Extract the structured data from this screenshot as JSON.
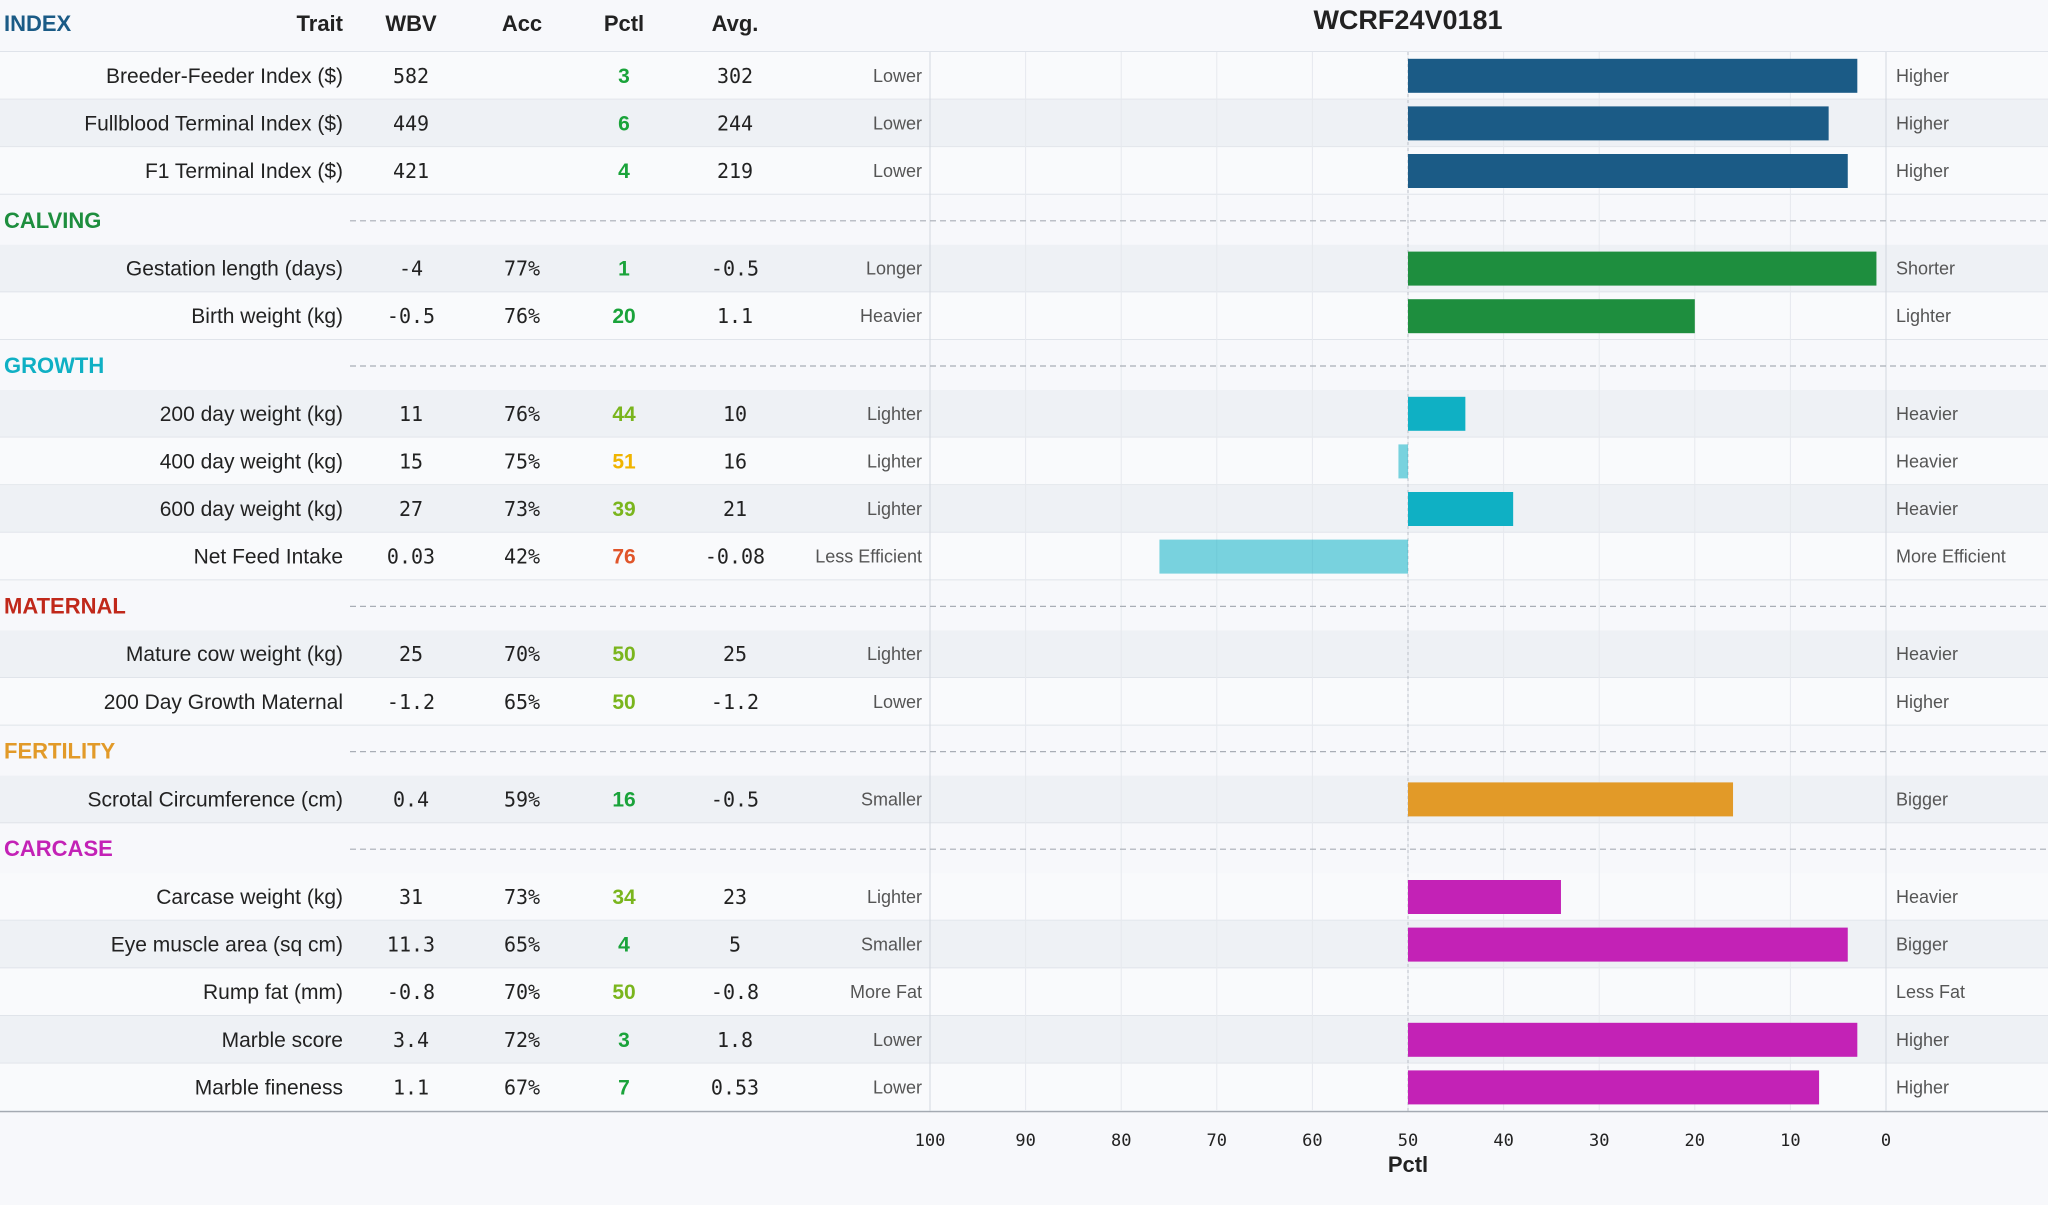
{
  "title": "WCRF24V0181",
  "columns": {
    "trait": "Trait",
    "wbv": "WBV",
    "acc": "Acc",
    "pctl": "Pctl",
    "avg": "Avg."
  },
  "axis": {
    "label": "Pctl",
    "ticks": [
      100,
      90,
      80,
      70,
      60,
      50,
      40,
      30,
      20,
      10,
      0
    ],
    "range": [
      100,
      0
    ]
  },
  "pctl_colors": {
    "excellent": "#1aa33a",
    "good": "#7ab51d",
    "average": "#f0b400",
    "poor": "#e0552a"
  },
  "chart_data": {
    "type": "bar",
    "orientation": "horizontal",
    "baseline": 50,
    "xlim": [
      100,
      0
    ],
    "xlabel": "Pctl",
    "title": "WCRF24V0181",
    "groups": [
      {
        "name": "INDEX",
        "color": "#1b5b86",
        "traits": [
          {
            "trait": "Breeder-Feeder Index ($)",
            "wbv": "582",
            "acc": "",
            "pctl": 3,
            "avg": "302",
            "low": "Lower",
            "high": "Higher"
          },
          {
            "trait": "Fullblood Terminal Index ($)",
            "wbv": "449",
            "acc": "",
            "pctl": 6,
            "avg": "244",
            "low": "Lower",
            "high": "Higher"
          },
          {
            "trait": "F1 Terminal Index ($)",
            "wbv": "421",
            "acc": "",
            "pctl": 4,
            "avg": "219",
            "low": "Lower",
            "high": "Higher"
          }
        ]
      },
      {
        "name": "CALVING",
        "color": "#1e8e3e",
        "traits": [
          {
            "trait": "Gestation length (days)",
            "wbv": "-4",
            "acc": "77%",
            "pctl": 1,
            "avg": "-0.5",
            "low": "Longer",
            "high": "Shorter"
          },
          {
            "trait": "Birth weight (kg)",
            "wbv": "-0.5",
            "acc": "76%",
            "pctl": 20,
            "avg": "1.1",
            "low": "Heavier",
            "high": "Lighter"
          }
        ]
      },
      {
        "name": "GROWTH",
        "color": "#0fb0c4",
        "traits": [
          {
            "trait": "200 day weight (kg)",
            "wbv": "11",
            "acc": "76%",
            "pctl": 44,
            "avg": "10",
            "low": "Lighter",
            "high": "Heavier"
          },
          {
            "trait": "400 day weight (kg)",
            "wbv": "15",
            "acc": "75%",
            "pctl": 51,
            "avg": "16",
            "low": "Lighter",
            "high": "Heavier"
          },
          {
            "trait": "600 day weight (kg)",
            "wbv": "27",
            "acc": "73%",
            "pctl": 39,
            "avg": "21",
            "low": "Lighter",
            "high": "Heavier"
          },
          {
            "trait": "Net Feed Intake",
            "wbv": "0.03",
            "acc": "42%",
            "pctl": 76,
            "avg": "-0.08",
            "low": "Less Efficient",
            "high": "More Efficient"
          }
        ]
      },
      {
        "name": "MATERNAL",
        "color": "#c0281a",
        "traits": [
          {
            "trait": "Mature cow weight (kg)",
            "wbv": "25",
            "acc": "70%",
            "pctl": 50,
            "avg": "25",
            "low": "Lighter",
            "high": "Heavier"
          },
          {
            "trait": "200 Day Growth Maternal",
            "wbv": "-1.2",
            "acc": "65%",
            "pctl": 50,
            "avg": "-1.2",
            "low": "Lower",
            "high": "Higher"
          }
        ]
      },
      {
        "name": "FERTILITY",
        "color": "#e29a28",
        "traits": [
          {
            "trait": "Scrotal Circumference (cm)",
            "wbv": "0.4",
            "acc": "59%",
            "pctl": 16,
            "avg": "-0.5",
            "low": "Smaller",
            "high": "Bigger"
          }
        ]
      },
      {
        "name": "CARCASE",
        "color": "#c322b6",
        "traits": [
          {
            "trait": "Carcase weight (kg)",
            "wbv": "31",
            "acc": "73%",
            "pctl": 34,
            "avg": "23",
            "low": "Lighter",
            "high": "Heavier"
          },
          {
            "trait": "Eye muscle area (sq cm)",
            "wbv": "11.3",
            "acc": "65%",
            "pctl": 4,
            "avg": "5",
            "low": "Smaller",
            "high": "Bigger"
          },
          {
            "trait": "Rump fat (mm)",
            "wbv": "-0.8",
            "acc": "70%",
            "pctl": 50,
            "avg": "-0.8",
            "low": "More Fat",
            "high": "Less Fat"
          },
          {
            "trait": "Marble score",
            "wbv": "3.4",
            "acc": "72%",
            "pctl": 3,
            "avg": "1.8",
            "low": "Lower",
            "high": "Higher"
          },
          {
            "trait": "Marble fineness",
            "wbv": "1.1",
            "acc": "67%",
            "pctl": 7,
            "avg": "0.53",
            "low": "Lower",
            "high": "Higher"
          }
        ]
      }
    ]
  }
}
